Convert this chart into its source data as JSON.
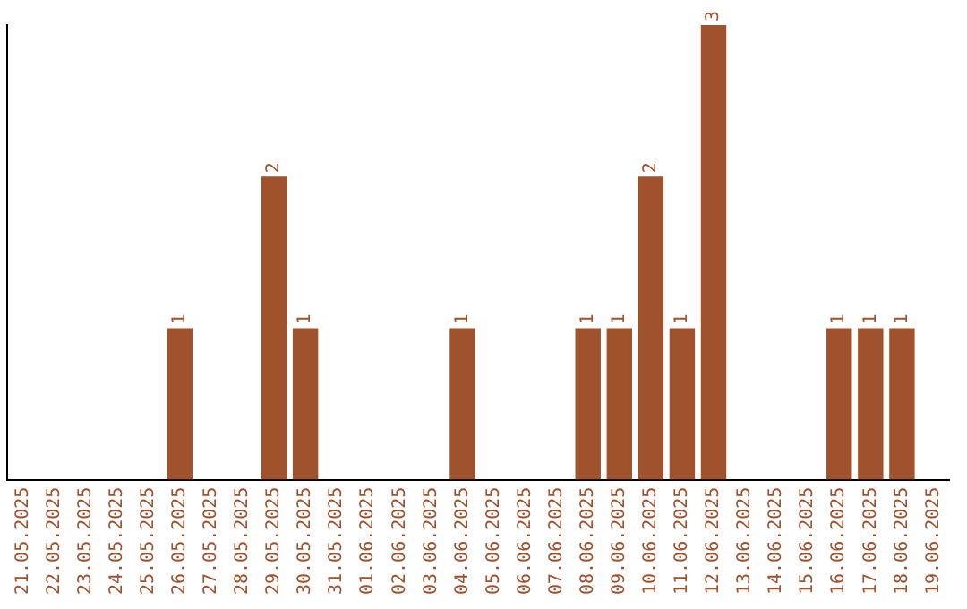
{
  "chart_data": {
    "type": "bar",
    "categories": [
      "21.05.2025",
      "22.05.2025",
      "23.05.2025",
      "24.05.2025",
      "25.05.2025",
      "26.05.2025",
      "27.05.2025",
      "28.05.2025",
      "29.05.2025",
      "30.05.2025",
      "31.05.2025",
      "01.06.2025",
      "02.06.2025",
      "03.06.2025",
      "04.06.2025",
      "05.06.2025",
      "06.06.2025",
      "07.06.2025",
      "08.06.2025",
      "09.06.2025",
      "10.06.2025",
      "11.06.2025",
      "12.06.2025",
      "13.06.2025",
      "14.06.2025",
      "15.06.2025",
      "16.06.2025",
      "17.06.2025",
      "18.06.2025",
      "19.06.2025"
    ],
    "values": [
      0,
      0,
      0,
      0,
      0,
      1,
      0,
      0,
      2,
      1,
      0,
      0,
      0,
      0,
      1,
      0,
      0,
      0,
      1,
      1,
      2,
      1,
      3,
      0,
      0,
      0,
      1,
      1,
      1,
      0
    ],
    "value_labels": [
      null,
      null,
      null,
      null,
      null,
      "1",
      null,
      null,
      "2",
      "1",
      null,
      null,
      null,
      null,
      "1",
      null,
      null,
      null,
      "1",
      "1",
      "2",
      "1",
      "3",
      null,
      null,
      null,
      "1",
      "1",
      "1",
      null
    ],
    "color": "#a0522d",
    "grid": false,
    "legend": false,
    "tick_labels": "x"
  }
}
